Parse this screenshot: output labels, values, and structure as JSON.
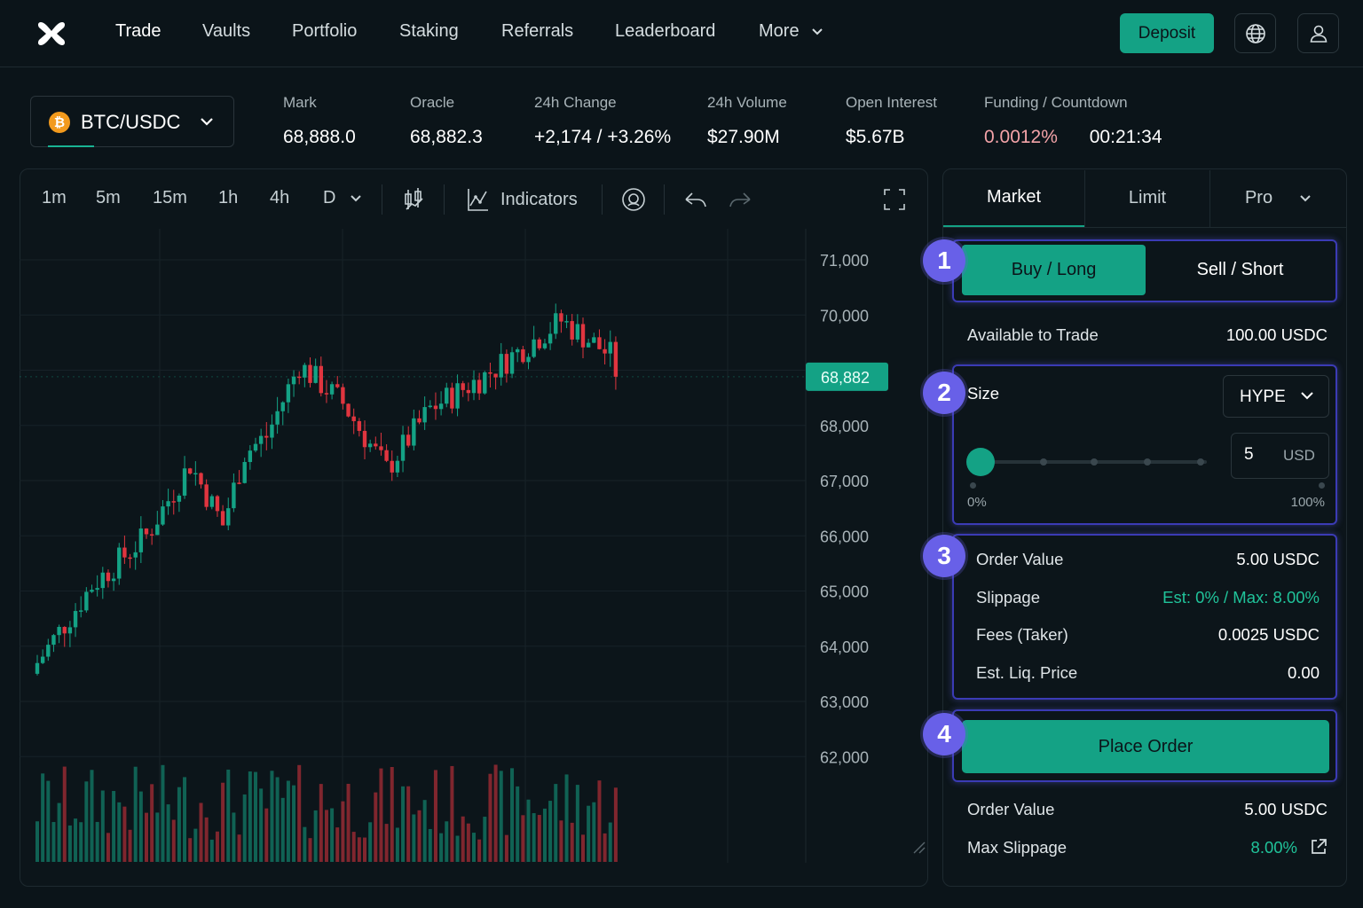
{
  "nav": {
    "items": [
      "Trade",
      "Vaults",
      "Portfolio",
      "Staking",
      "Referrals",
      "Leaderboard",
      "More"
    ],
    "deposit": "Deposit"
  },
  "market": {
    "pair": "BTC/USDC",
    "coin_glyph": "₿",
    "stats": [
      {
        "label": "Mark",
        "value": "68,888.0"
      },
      {
        "label": "Oracle",
        "value": "68,882.3"
      },
      {
        "label": "24h Change",
        "value": "+2,174 / +3.26%"
      },
      {
        "label": "24h Volume",
        "value": "$27.90M"
      },
      {
        "label": "Open Interest",
        "value": "$5.67B"
      }
    ],
    "funding": {
      "label": "Funding / Countdown",
      "rate": "0.0012%",
      "countdown": "00:21:34"
    }
  },
  "toolbar": {
    "timeframes": [
      "1m",
      "5m",
      "15m",
      "1h",
      "4h",
      "D"
    ],
    "indicators": "Indicators"
  },
  "chart_data": {
    "type": "candlestick",
    "ylim": [
      61000,
      71500
    ],
    "y_ticks": [
      "71,000",
      "70,000",
      "69,000",
      "68,000",
      "67,000",
      "66,000",
      "65,000",
      "64,000",
      "63,000",
      "62,000"
    ],
    "last_price_label": "68,882",
    "colors": {
      "up": "#14a285",
      "down": "#e0353f",
      "last": "#14a285"
    }
  },
  "order": {
    "tabs": [
      "Market",
      "Limit",
      "Pro"
    ],
    "buy": "Buy / Long",
    "sell": "Sell / Short",
    "available_label": "Available to Trade",
    "available_value": "100.00 USDC",
    "size_label": "Size",
    "size_unit": "HYPE",
    "size_value": "5",
    "size_currency": "USD",
    "slider_min": "0%",
    "slider_max": "100%",
    "slider_fraction": 0,
    "details": [
      {
        "label": "Order Value",
        "value": "5.00 USDC"
      },
      {
        "label": "Slippage",
        "value": "Est: 0% / Max: 8.00%"
      },
      {
        "label": "Fees (Taker)",
        "value": "0.0025 USDC"
      },
      {
        "label": "Est. Liq. Price",
        "value": "0.00"
      }
    ],
    "place": "Place Order",
    "footer": [
      {
        "label": "Order Value",
        "value": "5.00 USDC"
      },
      {
        "label": "Max Slippage",
        "value": "8.00%"
      }
    ],
    "badges": [
      "1",
      "2",
      "3",
      "4"
    ]
  }
}
